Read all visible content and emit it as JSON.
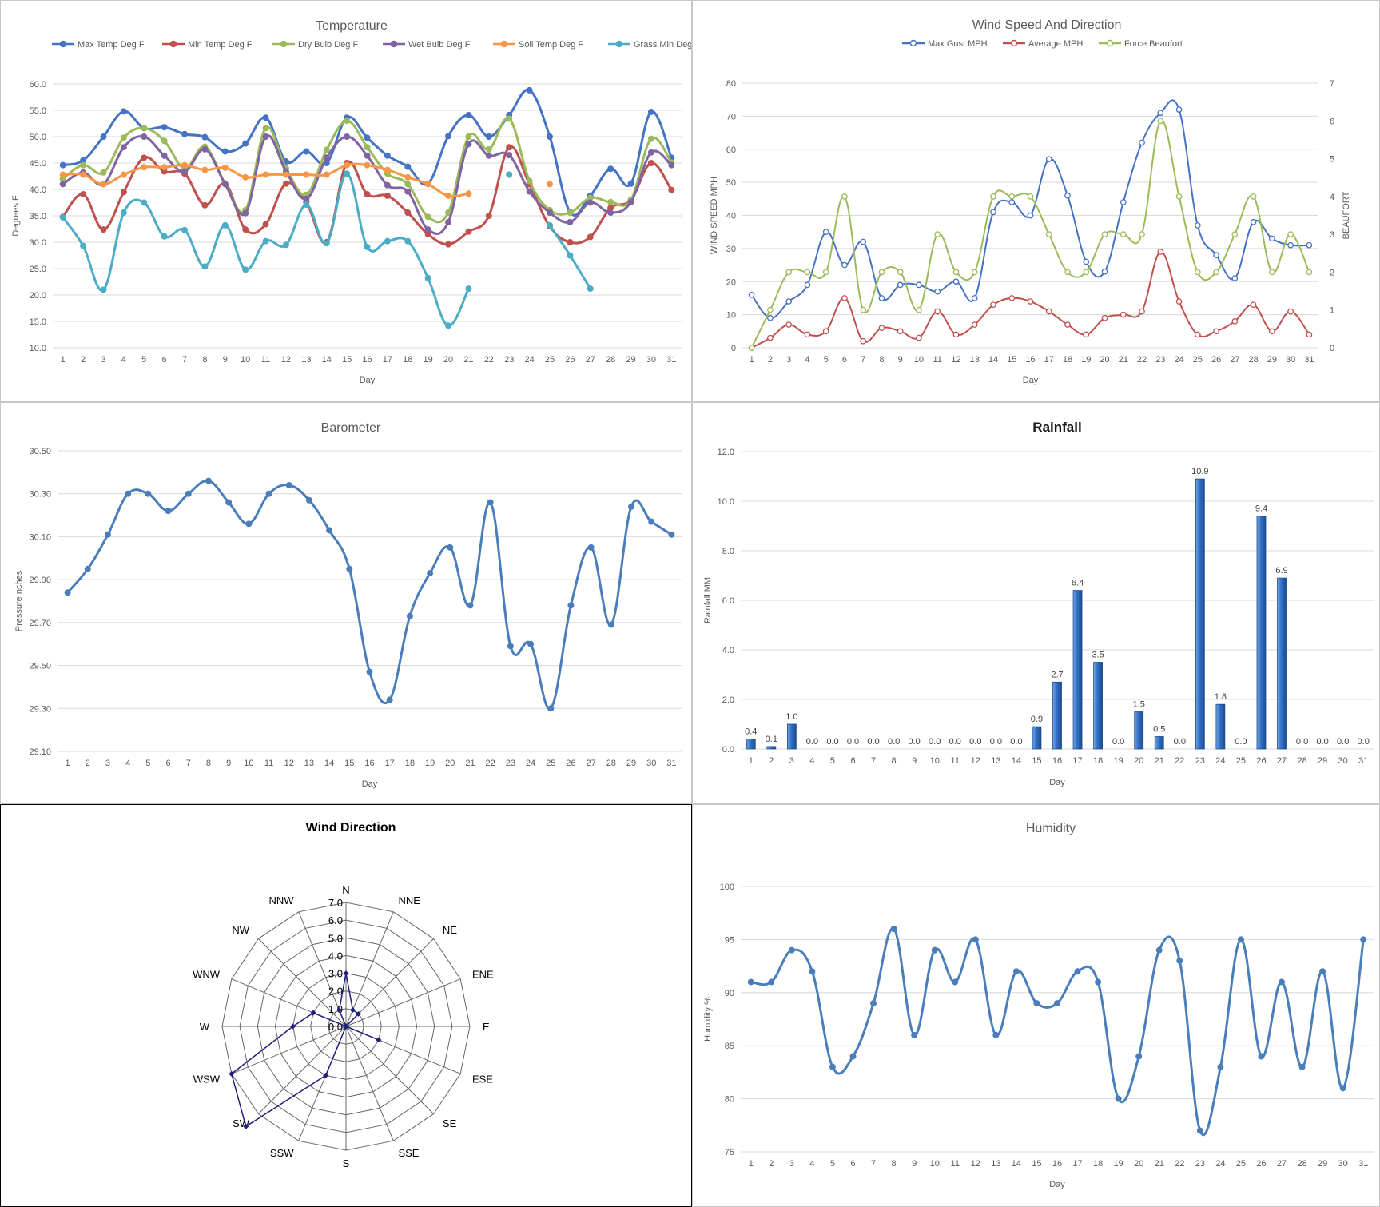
{
  "chart_data": [
    {
      "id": "temperature",
      "type": "line",
      "title": "Temperature",
      "xlabel": "Day",
      "ylabel": "Degrees F",
      "ylim": [
        10,
        60
      ],
      "yticks": [
        "10.0",
        "15.0",
        "20.0",
        "25.0",
        "30.0",
        "35.0",
        "40.0",
        "45.0",
        "50.0",
        "55.0",
        "60.0"
      ],
      "x": [
        "1",
        "2",
        "3",
        "4",
        "5",
        "6",
        "7",
        "8",
        "9",
        "10",
        "11",
        "12",
        "13",
        "14",
        "15",
        "16",
        "17",
        "18",
        "19",
        "20",
        "21",
        "22",
        "23",
        "24",
        "25",
        "26",
        "27",
        "28",
        "29",
        "30",
        "31"
      ],
      "grid": true,
      "legend": "top",
      "series": [
        {
          "name": "Max Temp Deg F",
          "color": "#4472c4",
          "values": [
            44.6,
            45.5,
            50.0,
            54.8,
            51.6,
            51.8,
            50.5,
            49.9,
            47.2,
            48.7,
            53.6,
            45.3,
            47.2,
            45.0,
            53.6,
            49.8,
            46.4,
            44.3,
            41.1,
            50.1,
            54.1,
            50.0,
            54.1,
            58.8,
            50.0,
            35.7,
            38.8,
            43.9,
            41.1,
            54.7,
            46.0
          ]
        },
        {
          "name": "Min Temp Deg F",
          "color": "#c0504d",
          "values": [
            34.8,
            39.1,
            32.4,
            39.5,
            46.0,
            43.4,
            43.0,
            37.0,
            41.1,
            32.4,
            33.4,
            41.1,
            37.6,
            30.0,
            45.0,
            39.1,
            38.8,
            35.6,
            31.5,
            29.6,
            32.0,
            35.0,
            48.0,
            41.0,
            33.0,
            30.0,
            31.0,
            36.5,
            38.0,
            45.0,
            39.9
          ]
        },
        {
          "name": "Dry Bulb Deg F",
          "color": "#9bbb59",
          "values": [
            42.0,
            44.6,
            43.2,
            49.8,
            51.6,
            49.2,
            44.0,
            48.1,
            41.1,
            36.1,
            51.6,
            44.0,
            39.0,
            47.5,
            53.0,
            48.0,
            43.0,
            41.0,
            34.8,
            35.6,
            50.0,
            47.6,
            53.4,
            41.6,
            36.1,
            35.6,
            38.4,
            37.6,
            38.0,
            49.6,
            45.1
          ]
        },
        {
          "name": "Wet Bulb Deg F",
          "color": "#8064a2",
          "values": [
            41.0,
            43.2,
            41.0,
            48.0,
            50.0,
            46.4,
            43.4,
            47.6,
            41.0,
            35.5,
            50.0,
            43.4,
            38.2,
            46.0,
            50.0,
            46.4,
            40.8,
            39.6,
            32.4,
            33.8,
            48.6,
            46.4,
            46.5,
            39.6,
            35.6,
            33.8,
            37.5,
            35.6,
            37.6,
            47.0,
            44.6
          ]
        },
        {
          "name": "Soil Temp Deg F",
          "color": "#f79646",
          "values": [
            42.8,
            42.8,
            41.0,
            42.8,
            44.2,
            44.2,
            44.6,
            43.7,
            44.1,
            42.3,
            42.8,
            42.8,
            42.8,
            42.8,
            44.6,
            44.6,
            43.7,
            42.3,
            41.0,
            38.8,
            39.2,
            null,
            null,
            null,
            41.0,
            null,
            null,
            null,
            null,
            null,
            null
          ]
        },
        {
          "name": "Grass Min Deg F",
          "color": "#4bacc6",
          "values": [
            34.7,
            29.3,
            21.0,
            35.6,
            37.5,
            31.1,
            32.3,
            25.4,
            33.2,
            24.8,
            30.2,
            29.5,
            37.1,
            29.8,
            43.0,
            29.1,
            30.2,
            30.2,
            23.2,
            14.2,
            21.2,
            null,
            42.8,
            null,
            33.2,
            27.5,
            21.2,
            null,
            null,
            null,
            null
          ]
        }
      ]
    },
    {
      "id": "wind-speed",
      "type": "line",
      "title": "Wind Speed And Direction",
      "xlabel": "Day",
      "ylabel": "WIND SPEED MPH",
      "y2label": "BEAUFORT",
      "ylim": [
        0,
        80
      ],
      "y2lim": [
        0,
        7
      ],
      "yticks": [
        "0",
        "10",
        "20",
        "30",
        "40",
        "50",
        "60",
        "70",
        "80"
      ],
      "y2ticks": [
        "0",
        "1",
        "2",
        "3",
        "4",
        "5",
        "6",
        "7"
      ],
      "x": [
        "1",
        "2",
        "3",
        "4",
        "5",
        "6",
        "7",
        "8",
        "9",
        "10",
        "11",
        "12",
        "13",
        "14",
        "15",
        "16",
        "17",
        "18",
        "19",
        "20",
        "21",
        "22",
        "23",
        "24",
        "25",
        "26",
        "27",
        "28",
        "29",
        "30",
        "31"
      ],
      "grid": true,
      "legend": "top",
      "series": [
        {
          "name": "Max Gust MPH",
          "color": "#4472c4",
          "axis": "left",
          "values": [
            16,
            9,
            14,
            19,
            35,
            25,
            32,
            15,
            19,
            19,
            17,
            20,
            15,
            41,
            44,
            40,
            57,
            46,
            26,
            23,
            44,
            62,
            71,
            72,
            37,
            28,
            21,
            38,
            33,
            31,
            31
          ]
        },
        {
          "name": "Average MPH",
          "color": "#c0504d",
          "axis": "left",
          "values": [
            0,
            3,
            7,
            4,
            5,
            15,
            2,
            6,
            5,
            3,
            11,
            4,
            7,
            13,
            15,
            14,
            11,
            7,
            4,
            9,
            10,
            11,
            29,
            14,
            4,
            5,
            8,
            13,
            5,
            11,
            4
          ]
        },
        {
          "name": "Force Beaufort",
          "color": "#9bbb59",
          "axis": "right",
          "values": [
            0,
            1,
            2,
            2,
            2,
            4,
            1,
            2,
            2,
            1,
            3,
            2,
            2,
            4,
            4,
            4,
            3,
            2,
            2,
            3,
            3,
            3,
            6,
            4,
            2,
            2,
            3,
            4,
            2,
            3,
            2
          ]
        }
      ]
    },
    {
      "id": "barometer",
      "type": "line",
      "title": "Barometer",
      "xlabel": "Day",
      "ylabel": "Pressure nches",
      "ylim": [
        29.1,
        30.5
      ],
      "yticks": [
        "29.10",
        "29.30",
        "29.50",
        "29.70",
        "29.90",
        "30.10",
        "30.30",
        "30.50"
      ],
      "x": [
        "1",
        "2",
        "3",
        "4",
        "5",
        "6",
        "7",
        "8",
        "9",
        "10",
        "11",
        "12",
        "13",
        "14",
        "15",
        "16",
        "17",
        "18",
        "19",
        "20",
        "21",
        "22",
        "23",
        "24",
        "25",
        "26",
        "27",
        "28",
        "29",
        "30",
        "31"
      ],
      "grid": true,
      "series": [
        {
          "color": "#4a7ebb",
          "values": [
            29.84,
            29.95,
            30.11,
            30.3,
            30.3,
            30.22,
            30.3,
            30.36,
            30.26,
            30.16,
            30.3,
            30.34,
            30.27,
            30.13,
            29.95,
            29.47,
            29.34,
            29.73,
            29.93,
            30.05,
            29.78,
            30.26,
            29.59,
            29.6,
            29.3,
            29.78,
            30.05,
            29.69,
            30.24,
            30.17,
            30.11
          ]
        }
      ]
    },
    {
      "id": "rainfall",
      "type": "bar",
      "title": "Rainfall",
      "xlabel": "Day",
      "ylabel": "Rainfall MM",
      "ylim": [
        0,
        12
      ],
      "yticks": [
        "0.0",
        "2.0",
        "4.0",
        "6.0",
        "8.0",
        "10.0",
        "12.0"
      ],
      "categories": [
        "1",
        "2",
        "3",
        "4",
        "5",
        "6",
        "7",
        "8",
        "9",
        "10",
        "11",
        "12",
        "13",
        "14",
        "15",
        "16",
        "17",
        "18",
        "19",
        "20",
        "21",
        "22",
        "23",
        "24",
        "25",
        "26",
        "27",
        "28",
        "29",
        "30",
        "31"
      ],
      "values": [
        0.4,
        0.1,
        1.0,
        0.0,
        0.0,
        0.0,
        0.0,
        0.0,
        0.0,
        0.0,
        0.0,
        0.0,
        0.0,
        0.0,
        0.9,
        2.7,
        6.4,
        3.5,
        0.0,
        1.5,
        0.5,
        0.0,
        10.9,
        1.8,
        0.0,
        9.4,
        6.9,
        0.0,
        0.0,
        0.0,
        0.0
      ],
      "labels": [
        "0.4",
        "0.1",
        "1.0",
        "0.0",
        "0.0",
        "0.0",
        "0.0",
        "0.0",
        "0.0",
        "0.0",
        "0.0",
        "0.0",
        "0.0",
        "0.0",
        "0.9",
        "2.7",
        "6.4",
        "3.5",
        "0.0",
        "1.5",
        "0.5",
        "0.0",
        "10.9",
        "1.8",
        "0.0",
        "9.4",
        "6.9",
        "0.0",
        "0.0",
        "0.0",
        "0.0"
      ],
      "color": "#2e6bbf",
      "grid": true
    },
    {
      "id": "wind-direction",
      "type": "radar",
      "title": "Wind Direction",
      "directions": [
        "N",
        "NNE",
        "NE",
        "ENE",
        "E",
        "ESE",
        "SE",
        "SSE",
        "S",
        "SSW",
        "SW",
        "WSW",
        "W",
        "WNW",
        "NW",
        "NNW"
      ],
      "values": [
        3,
        1,
        1,
        0,
        0,
        2,
        0,
        0,
        0,
        3,
        8,
        7,
        3,
        2,
        0,
        1
      ],
      "rlim": [
        0,
        7
      ],
      "rticks": [
        "0.0",
        "1.0",
        "2.0",
        "3.0",
        "4.0",
        "5.0",
        "6.0",
        "7.0"
      ],
      "color": "#1f1f7a"
    },
    {
      "id": "humidity",
      "type": "line",
      "title": "Humidity",
      "xlabel": "Day",
      "ylabel": "Humidity %",
      "ylim": [
        75,
        100
      ],
      "yticks": [
        "75",
        "80",
        "85",
        "90",
        "95",
        "100"
      ],
      "x": [
        "1",
        "2",
        "3",
        "4",
        "5",
        "6",
        "7",
        "8",
        "9",
        "10",
        "11",
        "12",
        "13",
        "14",
        "15",
        "16",
        "17",
        "18",
        "19",
        "20",
        "21",
        "22",
        "23",
        "24",
        "25",
        "26",
        "27",
        "28",
        "29",
        "30",
        "31"
      ],
      "grid": true,
      "series": [
        {
          "color": "#4a7ebb",
          "values": [
            91,
            91,
            94,
            92,
            83,
            84,
            89,
            96,
            86,
            94,
            91,
            95,
            86,
            92,
            89,
            89,
            92,
            91,
            80,
            84,
            94,
            93,
            77,
            83,
            95,
            84,
            91,
            83,
            92,
            81,
            95
          ]
        }
      ]
    }
  ]
}
